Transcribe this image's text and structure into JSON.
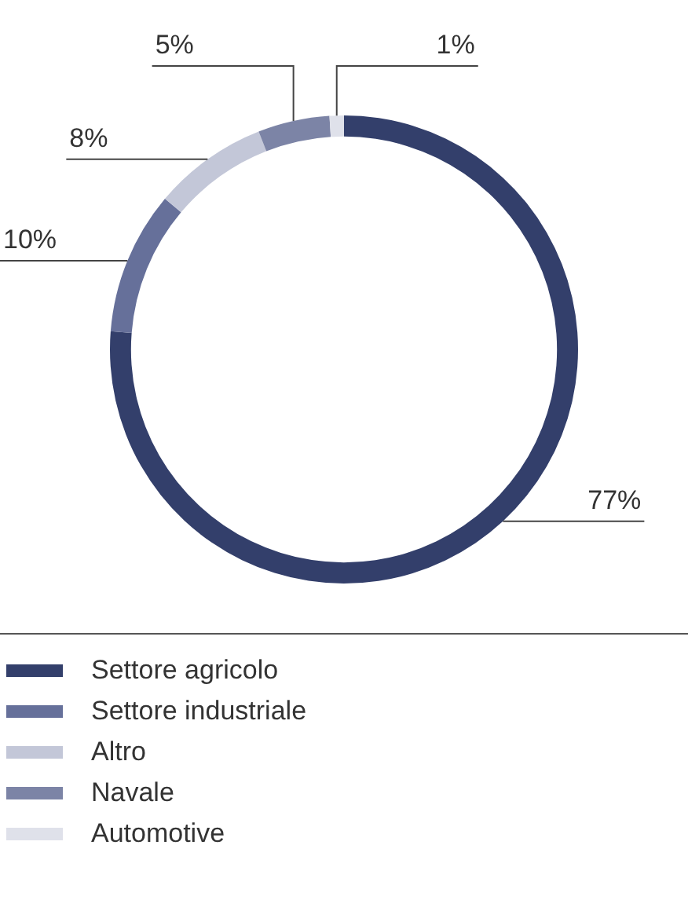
{
  "chart_data": {
    "type": "donut",
    "categories": [
      "Settore agricolo",
      "Settore industriale",
      "Altro",
      "Navale",
      "Automotive"
    ],
    "values": [
      77,
      10,
      8,
      5,
      1
    ],
    "value_labels": [
      "77%",
      "10%",
      "8%",
      "5%",
      "1%"
    ],
    "colors": [
      "#333f6b",
      "#66709a",
      "#c3c7d8",
      "#7c84a6",
      "#dfe1ea"
    ],
    "legend": "bottom"
  }
}
